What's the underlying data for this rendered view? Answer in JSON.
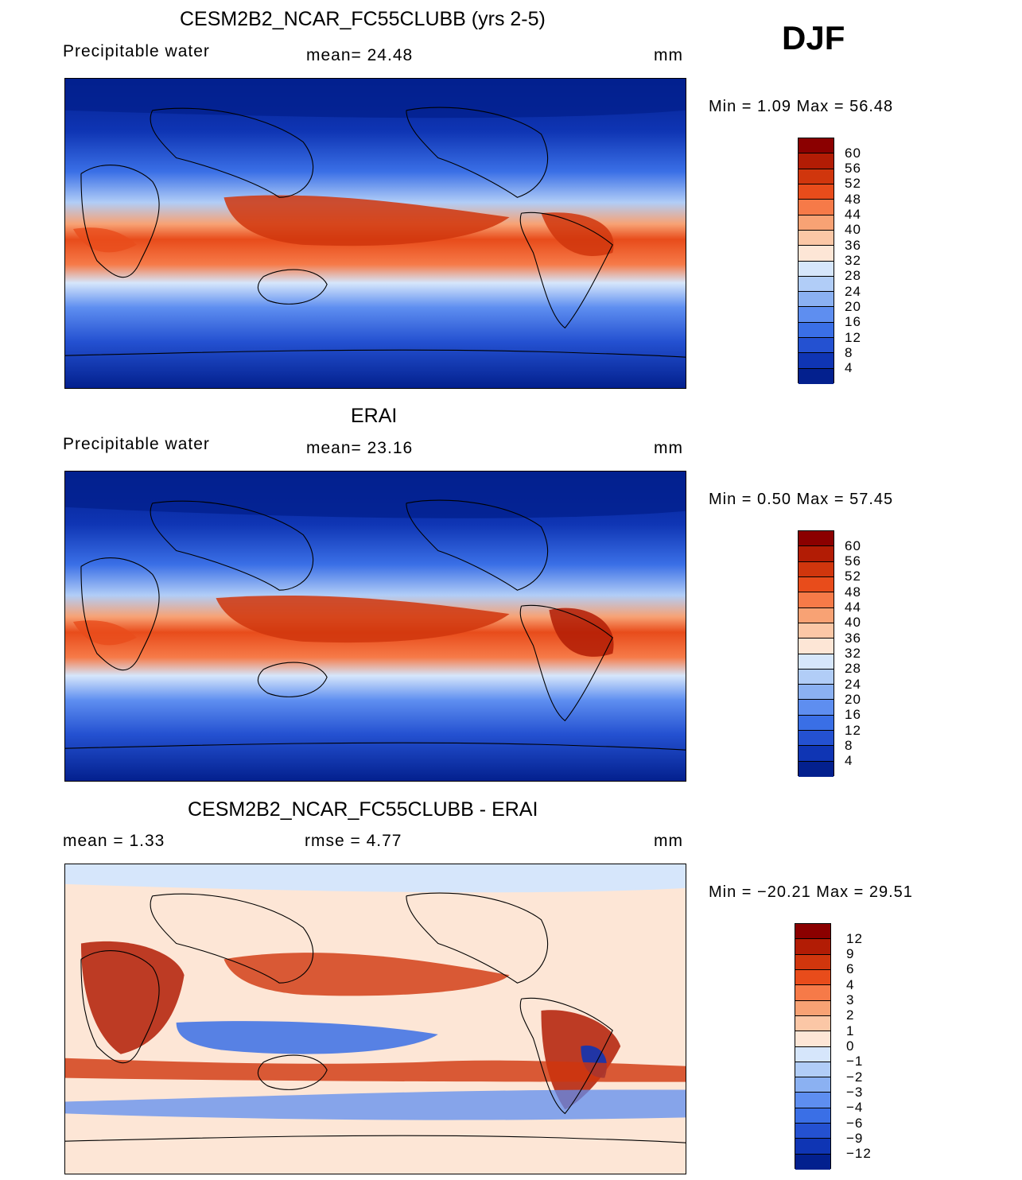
{
  "header": {
    "season": "DJF"
  },
  "panels": [
    {
      "title": "CESM2B2_NCAR_FC55CLUBB (yrs 2-5)",
      "left_label": "Precipitable water",
      "mid_label": "mean=   24.48",
      "units": "mm",
      "minmax": "Min =    1.09  Max =   56.48",
      "colorbar": {
        "labels": [
          "60",
          "56",
          "52",
          "48",
          "44",
          "40",
          "36",
          "32",
          "28",
          "24",
          "20",
          "16",
          "12",
          "8",
          "4"
        ],
        "colors": [
          "#8b0000",
          "#b21c05",
          "#d0360d",
          "#e84c1b",
          "#f67a48",
          "#f8a274",
          "#fbc7a6",
          "#fde6d6",
          "#d6e6fb",
          "#b1cdf7",
          "#8bb1f2",
          "#5e8ef0",
          "#3a6fe6",
          "#2451d1",
          "#0f35b4",
          "#03208e"
        ]
      },
      "map_data": {
        "field": "model",
        "mean": 24.48,
        "min": 1.09,
        "max": 56.48
      }
    },
    {
      "title": "ERAI",
      "left_label": "Precipitable water",
      "mid_label": "mean=   23.16",
      "units": "mm",
      "minmax": "Min =    0.50  Max =   57.45",
      "colorbar": {
        "labels": [
          "60",
          "56",
          "52",
          "48",
          "44",
          "40",
          "36",
          "32",
          "28",
          "24",
          "20",
          "16",
          "12",
          "8",
          "4"
        ],
        "colors": [
          "#8b0000",
          "#b21c05",
          "#d0360d",
          "#e84c1b",
          "#f67a48",
          "#f8a274",
          "#fbc7a6",
          "#fde6d6",
          "#d6e6fb",
          "#b1cdf7",
          "#8bb1f2",
          "#5e8ef0",
          "#3a6fe6",
          "#2451d1",
          "#0f35b4",
          "#03208e"
        ]
      },
      "map_data": {
        "field": "obs",
        "mean": 23.16,
        "min": 0.5,
        "max": 57.45
      }
    },
    {
      "title": "CESM2B2_NCAR_FC55CLUBB - ERAI",
      "left_label": "mean =     1.33",
      "mid_label": "rmse =    4.77",
      "units": "mm",
      "minmax": "Min = −20.21  Max =   29.51",
      "colorbar": {
        "labels": [
          "12",
          "9",
          "6",
          "4",
          "3",
          "2",
          "1",
          "0",
          "−1",
          "−2",
          "−3",
          "−4",
          "−6",
          "−9",
          "−12"
        ],
        "colors": [
          "#8b0000",
          "#b21c05",
          "#d0360d",
          "#e84c1b",
          "#f67a48",
          "#f8a274",
          "#fbc7a6",
          "#fde6d6",
          "#d6e6fb",
          "#b1cdf7",
          "#8bb1f2",
          "#5e8ef0",
          "#3a6fe6",
          "#2451d1",
          "#0f35b4",
          "#03208e"
        ]
      },
      "map_data": {
        "field": "diff",
        "mean": 1.33,
        "rmse": 4.77,
        "min": -20.21,
        "max": 29.51
      }
    }
  ]
}
